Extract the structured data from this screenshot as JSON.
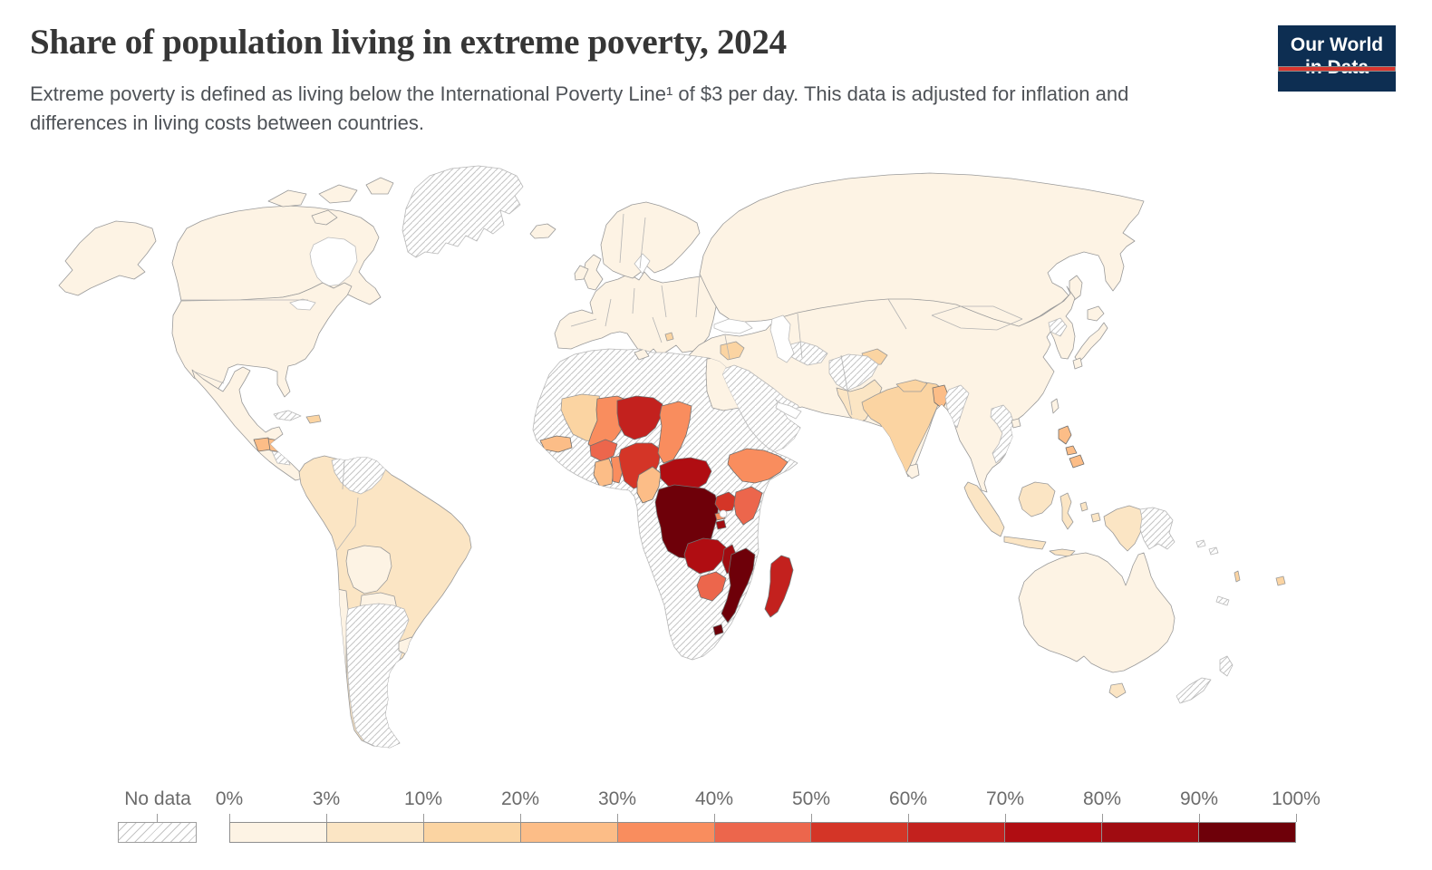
{
  "header": {
    "title": "Share of population living in extreme poverty, 2024",
    "subtitle": "Extreme poverty is defined as living below the International Poverty Line¹ of $3 per day. This data is adjusted for inflation and differences in living costs between countries."
  },
  "logo": {
    "line1": "Our World",
    "line2": "in Data",
    "bg_color": "#0d2e52",
    "accent_color": "#d8352e"
  },
  "legend": {
    "no_data_label": "No data",
    "tick_labels": [
      "0%",
      "3%",
      "10%",
      "20%",
      "30%",
      "40%",
      "50%",
      "60%",
      "70%",
      "80%",
      "90%",
      "100%"
    ],
    "bins": [
      "0-3%",
      "3-10%",
      "10-20%",
      "20-30%",
      "30-40%",
      "40-50%",
      "50-60%",
      "60-70%",
      "70-80%",
      "80-90%",
      "90-100%"
    ],
    "bin_colors": [
      "#fdf3e4",
      "#fbe5c4",
      "#fbd4a2",
      "#fcbd87",
      "#f98d5e",
      "#ec664c",
      "#d43527",
      "#c3211e",
      "#b00d12",
      "#a00c11",
      "#6e0009"
    ],
    "no_data_hatch_color": "#c4c4c4"
  },
  "chart_data": {
    "type": "heatmap",
    "subtype": "world choropleth map",
    "title": "Share of population living in extreme poverty, 2024",
    "unit": "% of population below the $3/day International Poverty Line",
    "legend_bins": [
      "0-3%",
      "3-10%",
      "10-20%",
      "20-30%",
      "30-40%",
      "40-50%",
      "50-60%",
      "60-70%",
      "70-80%",
      "80-90%",
      "90-100%",
      "No data"
    ],
    "regions": [
      {
        "name": "United States",
        "value": "0-3%"
      },
      {
        "name": "Canada",
        "value": "0-3%"
      },
      {
        "name": "Greenland",
        "value": "No data"
      },
      {
        "name": "Iceland",
        "value": "0-3%"
      },
      {
        "name": "Mexico",
        "value": "0-3%"
      },
      {
        "name": "Guatemala",
        "value": "20-30%"
      },
      {
        "name": "Honduras",
        "value": "20-30%"
      },
      {
        "name": "Nicaragua",
        "value": "No data"
      },
      {
        "name": "Cuba",
        "value": "No data"
      },
      {
        "name": "Haiti & Dominican Republic",
        "value": "10-20%"
      },
      {
        "name": "Brazil",
        "value": "3-10%"
      },
      {
        "name": "Colombia",
        "value": "3-10%"
      },
      {
        "name": "Peru",
        "value": "3-10%"
      },
      {
        "name": "Ecuador",
        "value": "3-10%"
      },
      {
        "name": "Guyana",
        "value": "3-10%"
      },
      {
        "name": "Venezuela",
        "value": "No data"
      },
      {
        "name": "Bolivia",
        "value": "0-3%"
      },
      {
        "name": "Paraguay",
        "value": "0-3%"
      },
      {
        "name": "Argentina",
        "value": "No data"
      },
      {
        "name": "Chile",
        "value": "0-3%"
      },
      {
        "name": "Uruguay",
        "value": "0-3%"
      },
      {
        "name": "Europe",
        "value": "0-3%"
      },
      {
        "name": "United Kingdom",
        "value": "0-3%"
      },
      {
        "name": "Ireland",
        "value": "0-3%"
      },
      {
        "name": "Norway, Sweden & Finland",
        "value": "0-3%"
      },
      {
        "name": "Kosovo",
        "value": "10-20%"
      },
      {
        "name": "Russia",
        "value": "0-3%"
      },
      {
        "name": "Asia (most countries)",
        "value": "0-3%"
      },
      {
        "name": "Saudi Arabia, Yemen & Oman",
        "value": "No data"
      },
      {
        "name": "Syria",
        "value": "10-20%"
      },
      {
        "name": "Turkmenistan",
        "value": "No data"
      },
      {
        "name": "Tajikistan",
        "value": "10-20%"
      },
      {
        "name": "Afghanistan",
        "value": "No data"
      },
      {
        "name": "Pakistan",
        "value": "3-10%"
      },
      {
        "name": "India",
        "value": "10-20%"
      },
      {
        "name": "Nepal",
        "value": "10-20%"
      },
      {
        "name": "Bangladesh",
        "value": "20-30%"
      },
      {
        "name": "Myanmar",
        "value": "No data"
      },
      {
        "name": "Vietnam",
        "value": "No data"
      },
      {
        "name": "North Korea",
        "value": "No data"
      },
      {
        "name": "Japan",
        "value": "0-3%"
      },
      {
        "name": "Taiwan",
        "value": "0-3%"
      },
      {
        "name": "Sri Lanka",
        "value": "0-3%"
      },
      {
        "name": "Philippines",
        "value": "20-30%"
      },
      {
        "name": "Indonesia",
        "value": "3-10%"
      },
      {
        "name": "Papua New Guinea",
        "value": "No data"
      },
      {
        "name": "Solomon Islands",
        "value": "No data"
      },
      {
        "name": "Vanuatu",
        "value": "10-20%"
      },
      {
        "name": "Fiji",
        "value": "10-20%"
      },
      {
        "name": "New Caledonia",
        "value": "No data"
      },
      {
        "name": "Australia",
        "value": "0-3%"
      },
      {
        "name": "Tasmania",
        "value": "3-10%"
      },
      {
        "name": "New Zealand",
        "value": "No data"
      },
      {
        "name": "Africa (no-data countries)",
        "value": "No data"
      },
      {
        "name": "Morocco",
        "value": "No data"
      },
      {
        "name": "Algeria",
        "value": "No data"
      },
      {
        "name": "Libya",
        "value": "No data"
      },
      {
        "name": "Sudan",
        "value": "No data"
      },
      {
        "name": "South Sudan",
        "value": "No data"
      },
      {
        "name": "Somalia",
        "value": "No data"
      },
      {
        "name": "Eritrea",
        "value": "No data"
      },
      {
        "name": "Guinea",
        "value": "No data"
      },
      {
        "name": "Côte d'Ivoire",
        "value": "No data"
      },
      {
        "name": "Liberia",
        "value": "No data"
      },
      {
        "name": "Gabon & Republic of the Congo",
        "value": "No data"
      },
      {
        "name": "Angola",
        "value": "No data"
      },
      {
        "name": "Tanzania",
        "value": "No data"
      },
      {
        "name": "Namibia",
        "value": "No data"
      },
      {
        "name": "Botswana",
        "value": "No data"
      },
      {
        "name": "South Africa",
        "value": "No data"
      },
      {
        "name": "Egypt",
        "value": "0-3%"
      },
      {
        "name": "Tunisia",
        "value": "0-3%"
      },
      {
        "name": "Mauritania",
        "value": "10-20%"
      },
      {
        "name": "Senegal",
        "value": "20-30%"
      },
      {
        "name": "Mali",
        "value": "30-40%"
      },
      {
        "name": "Burkina Faso",
        "value": "40-50%"
      },
      {
        "name": "Ghana",
        "value": "20-30%"
      },
      {
        "name": "Togo & Benin",
        "value": "30-40%"
      },
      {
        "name": "Niger",
        "value": "60-70%"
      },
      {
        "name": "Nigeria",
        "value": "50-60%"
      },
      {
        "name": "Chad",
        "value": "30-40%"
      },
      {
        "name": "Cameroon",
        "value": "20-30%"
      },
      {
        "name": "Central African Republic",
        "value": "70-80%"
      },
      {
        "name": "Democratic Republic of Congo",
        "value": "90-100%"
      },
      {
        "name": "Uganda",
        "value": "50-60%"
      },
      {
        "name": "Kenya",
        "value": "40-50%"
      },
      {
        "name": "Ethiopia",
        "value": "30-40%"
      },
      {
        "name": "Rwanda",
        "value": "30-40%"
      },
      {
        "name": "Burundi",
        "value": "80-90%"
      },
      {
        "name": "Zambia",
        "value": "70-80%"
      },
      {
        "name": "Malawi",
        "value": "80-90%"
      },
      {
        "name": "Mozambique",
        "value": "90-100%"
      },
      {
        "name": "Zimbabwe",
        "value": "40-50%"
      },
      {
        "name": "Lesotho",
        "value": "90-100%"
      },
      {
        "name": "Madagascar",
        "value": "60-70%"
      }
    ]
  }
}
